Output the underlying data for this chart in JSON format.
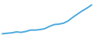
{
  "x": [
    0,
    1,
    2,
    3,
    4,
    5,
    6,
    7,
    8,
    9,
    10,
    11,
    12,
    13,
    14,
    15,
    16,
    17,
    18,
    19
  ],
  "y": [
    13.2,
    13.3,
    13.4,
    13.6,
    13.5,
    13.7,
    14.0,
    14.0,
    14.1,
    14.3,
    14.8,
    15.2,
    15.3,
    15.5,
    16.0,
    16.8,
    17.5,
    18.2,
    18.8,
    19.5
  ],
  "line_color": "#4daadd",
  "linewidth": 1.4,
  "background_color": "#ffffff",
  "ylim_min": 13.0,
  "ylim_max": 20.5
}
